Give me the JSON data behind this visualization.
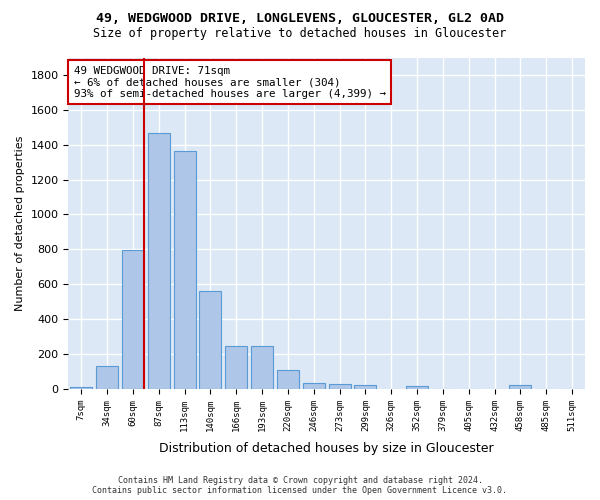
{
  "title1": "49, WEDGWOOD DRIVE, LONGLEVENS, GLOUCESTER, GL2 0AD",
  "title2": "Size of property relative to detached houses in Gloucester",
  "xlabel": "Distribution of detached houses by size in Gloucester",
  "ylabel": "Number of detached properties",
  "bar_values": [
    10,
    130,
    795,
    1465,
    1365,
    560,
    248,
    248,
    108,
    35,
    30,
    25,
    0,
    18,
    0,
    0,
    0,
    20,
    0,
    0
  ],
  "bar_labels": [
    "7sqm",
    "34sqm",
    "60sqm",
    "87sqm",
    "113sqm",
    "140sqm",
    "166sqm",
    "193sqm",
    "220sqm",
    "246sqm",
    "273sqm",
    "299sqm",
    "326sqm",
    "352sqm",
    "379sqm",
    "405sqm",
    "432sqm",
    "458sqm",
    "485sqm",
    "511sqm"
  ],
  "bar_color": "#aec6e8",
  "bar_edge_color": "#5b9bd5",
  "vline_color": "#cc0000",
  "annotation_text": "49 WEDGWOOD DRIVE: 71sqm\n← 6% of detached houses are smaller (304)\n93% of semi-detached houses are larger (4,399) →",
  "annotation_box_color": "#cc0000",
  "ylim": [
    0,
    1900
  ],
  "yticks": [
    0,
    200,
    400,
    600,
    800,
    1000,
    1200,
    1400,
    1600,
    1800
  ],
  "bg_color": "#dce8f5",
  "grid_color": "#ffffff",
  "footer": "Contains HM Land Registry data © Crown copyright and database right 2024.\nContains public sector information licensed under the Open Government Licence v3.0."
}
